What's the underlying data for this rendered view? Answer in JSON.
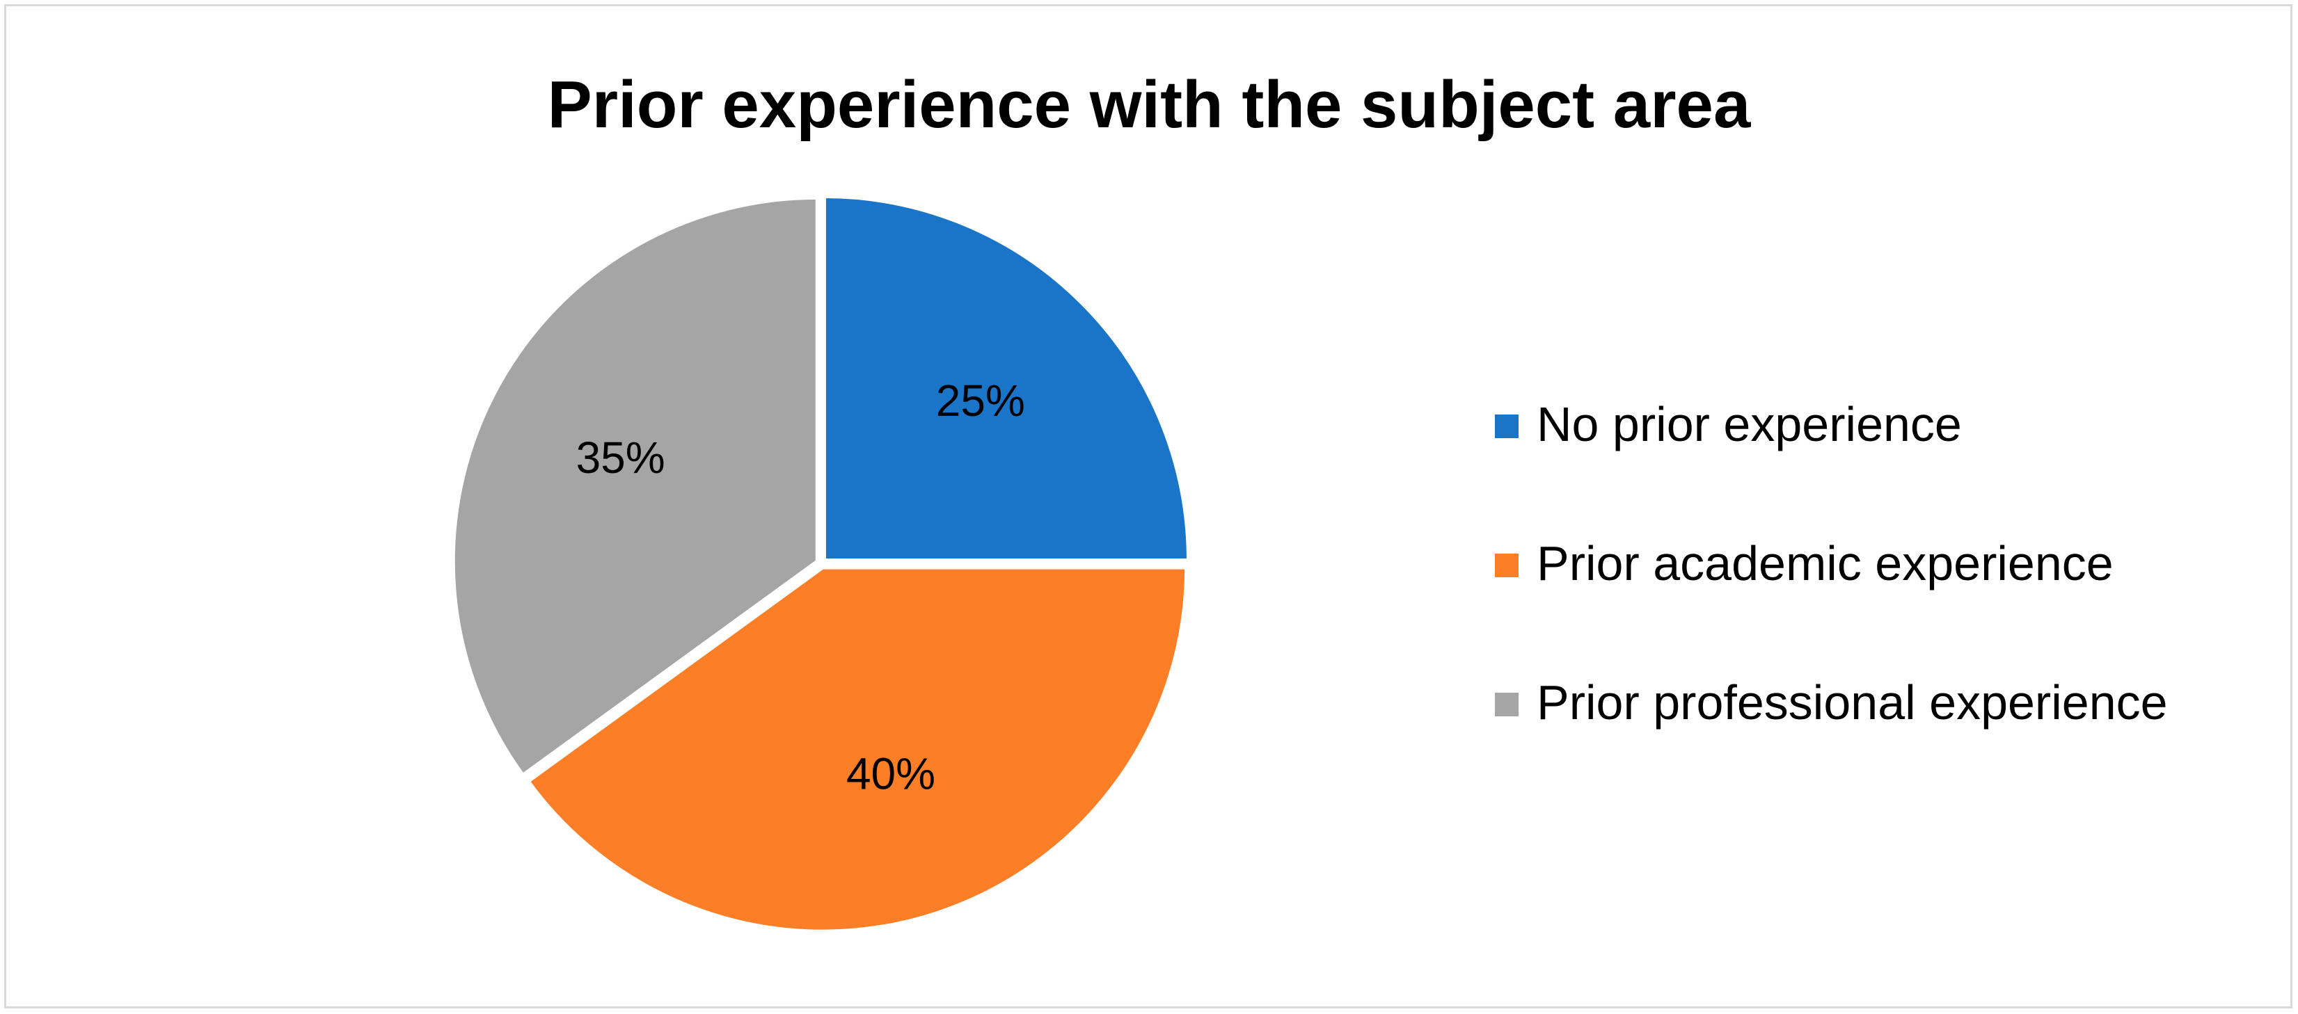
{
  "chart_data": {
    "type": "pie",
    "title": "Prior experience with the subject area",
    "categories": [
      "No prior experience",
      "Prior academic experience",
      "Prior professional experience"
    ],
    "values": [
      25,
      40,
      35
    ],
    "data_labels": [
      "25%",
      "40%",
      "35%"
    ],
    "colors": [
      "#1a74c8",
      "#fc7f27",
      "#a5a5a5"
    ],
    "legend": "right"
  }
}
